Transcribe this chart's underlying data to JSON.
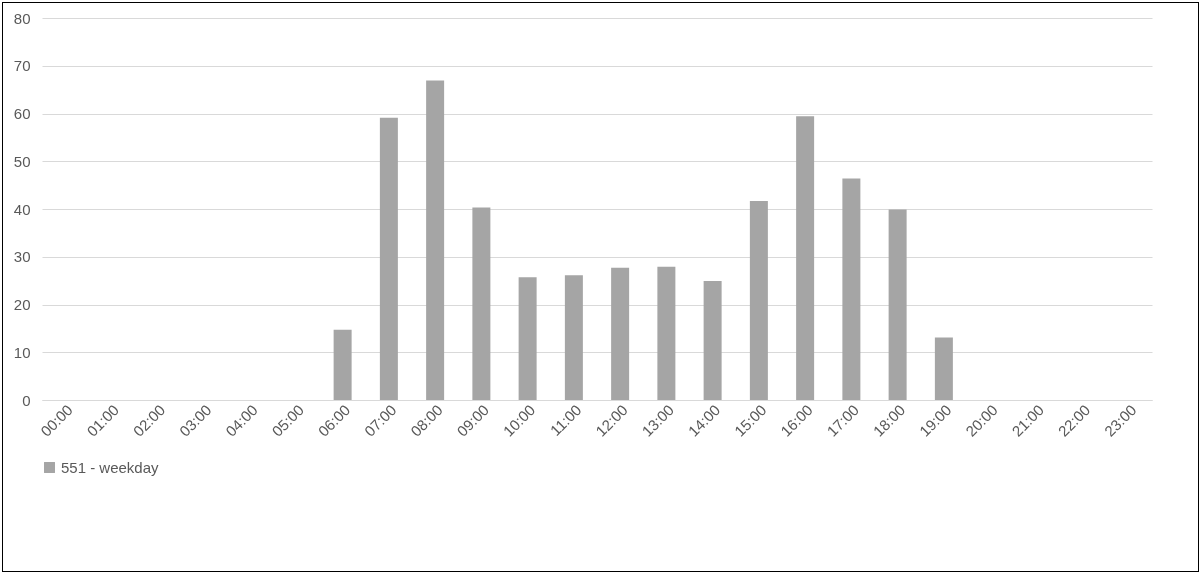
{
  "chart_data": {
    "type": "bar",
    "categories": [
      "00:00",
      "01:00",
      "02:00",
      "03:00",
      "04:00",
      "05:00",
      "06:00",
      "07:00",
      "08:00",
      "09:00",
      "10:00",
      "11:00",
      "12:00",
      "13:00",
      "14:00",
      "15:00",
      "16:00",
      "17:00",
      "18:00",
      "19:00",
      "20:00",
      "21:00",
      "22:00",
      "23:00"
    ],
    "series": [
      {
        "name": "551 - weekday",
        "color": "#a5a5a5",
        "values": [
          0,
          0,
          0,
          0,
          0,
          0,
          14.7,
          59.1,
          66.9,
          40.3,
          25.7,
          26.1,
          27.7,
          27.9,
          24.9,
          41.7,
          59.4,
          46.4,
          39.9,
          13.1,
          0,
          0,
          0,
          0
        ]
      }
    ],
    "ylim": [
      0,
      80
    ],
    "yticks": [
      0,
      10,
      20,
      30,
      40,
      50,
      60,
      70,
      80
    ],
    "grid": "y",
    "legend": "bottom"
  }
}
